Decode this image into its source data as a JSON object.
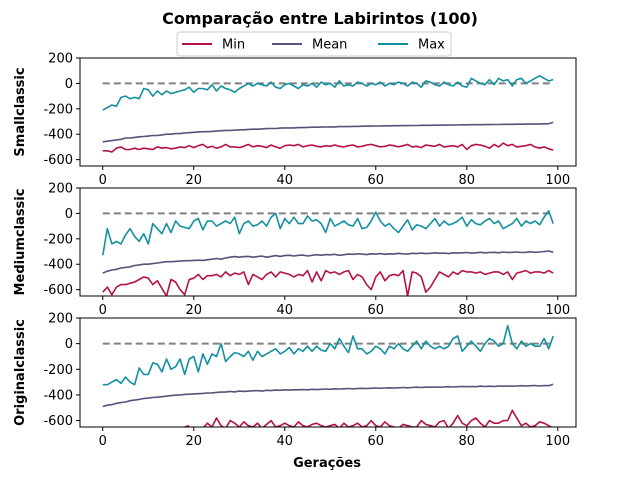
{
  "figure": {
    "title": "Comparação entre Labirintos (100)",
    "xlabel": "Gerações"
  },
  "legend": {
    "placement": "top-center",
    "entries": [
      {
        "name": "Min",
        "color": "#b5104a"
      },
      {
        "name": "Mean",
        "color": "#5c4f7a"
      },
      {
        "name": "Max",
        "color": "#1390a0"
      }
    ]
  },
  "colors": {
    "min": "#b5104a",
    "mean": "#5c4f7a",
    "max": "#1390a0",
    "baseline": "#808080"
  },
  "chart_data": [
    {
      "type": "line",
      "ylabel": "Smallclassic",
      "xlim": [
        -5,
        104
      ],
      "ylim": [
        -650,
        200
      ],
      "xticks": [
        "0",
        "20",
        "40",
        "60",
        "80",
        "100"
      ],
      "yticks": [
        "-600",
        "-400",
        "-200",
        "0",
        "200"
      ],
      "baseline": 0,
      "x_start": 0,
      "x_step": 1,
      "series": [
        {
          "name": "Min",
          "values": [
            -530,
            -530,
            -540,
            -510,
            -500,
            -520,
            -520,
            -510,
            -520,
            -510,
            -515,
            -520,
            -500,
            -510,
            -505,
            -515,
            -510,
            -500,
            -505,
            -490,
            -505,
            -490,
            -480,
            -505,
            -495,
            -510,
            -500,
            -480,
            -500,
            -500,
            -505,
            -495,
            -480,
            -500,
            -490,
            -495,
            -505,
            -485,
            -500,
            -510,
            -490,
            -485,
            -490,
            -480,
            -500,
            -490,
            -485,
            -495,
            -500,
            -490,
            -495,
            -485,
            -495,
            -500,
            -490,
            -485,
            -500,
            -495,
            -485,
            -480,
            -490,
            -500,
            -495,
            -485,
            -490,
            -500,
            -490,
            -480,
            -500,
            -495,
            -505,
            -485,
            -490,
            -495,
            -480,
            -500,
            -495,
            -490,
            -500,
            -480,
            -520,
            -490,
            -480,
            -485,
            -495,
            -510,
            -480,
            -500,
            -470,
            -490,
            -480,
            -500,
            -495,
            -490,
            -480,
            -500,
            -510,
            -500,
            -515,
            -525
          ]
        },
        {
          "name": "Mean",
          "values": [
            -460,
            -455,
            -450,
            -445,
            -440,
            -430,
            -430,
            -425,
            -420,
            -418,
            -415,
            -410,
            -410,
            -405,
            -400,
            -400,
            -395,
            -395,
            -390,
            -388,
            -385,
            -382,
            -380,
            -380,
            -378,
            -375,
            -372,
            -370,
            -370,
            -368,
            -365,
            -365,
            -362,
            -360,
            -360,
            -358,
            -356,
            -355,
            -355,
            -352,
            -350,
            -350,
            -350,
            -348,
            -348,
            -346,
            -345,
            -345,
            -344,
            -343,
            -342,
            -342,
            -340,
            -340,
            -340,
            -338,
            -338,
            -337,
            -336,
            -336,
            -335,
            -335,
            -334,
            -334,
            -333,
            -333,
            -332,
            -332,
            -331,
            -331,
            -330,
            -330,
            -330,
            -329,
            -329,
            -328,
            -328,
            -327,
            -327,
            -326,
            -326,
            -325,
            -325,
            -325,
            -324,
            -324,
            -323,
            -323,
            -322,
            -322,
            -322,
            -321,
            -321,
            -320,
            -320,
            -320,
            -319,
            -318,
            -318,
            -305
          ]
        },
        {
          "name": "Max",
          "values": [
            -210,
            -190,
            -170,
            -180,
            -110,
            -100,
            -120,
            -110,
            -120,
            -40,
            -50,
            -100,
            -60,
            -90,
            -60,
            -80,
            -70,
            -60,
            -50,
            -30,
            -70,
            -40,
            -40,
            -50,
            -10,
            -60,
            -20,
            -40,
            -50,
            -70,
            -40,
            -20,
            0,
            -20,
            0,
            -10,
            -20,
            10,
            -30,
            -40,
            -10,
            0,
            -20,
            -40,
            -10,
            -20,
            0,
            -30,
            10,
            -10,
            0,
            -30,
            20,
            -20,
            -10,
            -20,
            10,
            0,
            -20,
            0,
            -10,
            10,
            -20,
            0,
            -10,
            10,
            0,
            -20,
            10,
            0,
            -30,
            20,
            10,
            -10,
            -20,
            10,
            -10,
            -20,
            10,
            -20,
            -30,
            40,
            20,
            0,
            -10,
            30,
            -10,
            40,
            20,
            30,
            -20,
            30,
            40,
            0,
            20,
            40,
            60,
            40,
            20,
            30
          ]
        }
      ]
    },
    {
      "type": "line",
      "ylabel": "Mediumclassic",
      "xlim": [
        -5,
        104
      ],
      "ylim": [
        -650,
        200
      ],
      "xticks": [
        "0",
        "20",
        "40",
        "60",
        "80",
        "100"
      ],
      "yticks": [
        "-600",
        "-400",
        "-200",
        "0",
        "200"
      ],
      "baseline": 0,
      "x_start": 0,
      "x_step": 1,
      "series": [
        {
          "name": "Min",
          "values": [
            -620,
            -580,
            -640,
            -580,
            -560,
            -560,
            -550,
            -540,
            -520,
            -500,
            -510,
            -560,
            -530,
            -590,
            -650,
            -520,
            -540,
            -600,
            -640,
            -520,
            -510,
            -480,
            -520,
            -490,
            -490,
            -480,
            -500,
            -460,
            -490,
            -470,
            -480,
            -460,
            -560,
            -480,
            -500,
            -520,
            -480,
            -460,
            -500,
            -460,
            -470,
            -480,
            -500,
            -480,
            -490,
            -450,
            -540,
            -460,
            -530,
            -450,
            -470,
            -460,
            -480,
            -460,
            -450,
            -520,
            -480,
            -500,
            -560,
            -600,
            -500,
            -460,
            -530,
            -490,
            -480,
            -490,
            -450,
            -650,
            -460,
            -470,
            -500,
            -620,
            -580,
            -520,
            -460,
            -480,
            -500,
            -460,
            -480,
            -450,
            -460,
            -460,
            -470,
            -460,
            -480,
            -470,
            -460,
            -460,
            -480,
            -460,
            -520,
            -470,
            -460,
            -450,
            -470,
            -460,
            -460,
            -470,
            -450,
            -470
          ]
        },
        {
          "name": "Mean",
          "values": [
            -470,
            -455,
            -445,
            -440,
            -430,
            -425,
            -420,
            -410,
            -405,
            -400,
            -400,
            -395,
            -390,
            -385,
            -380,
            -380,
            -378,
            -375,
            -372,
            -372,
            -370,
            -368,
            -370,
            -365,
            -360,
            -355,
            -360,
            -350,
            -345,
            -340,
            -345,
            -340,
            -338,
            -345,
            -340,
            -336,
            -345,
            -338,
            -332,
            -338,
            -332,
            -330,
            -335,
            -330,
            -328,
            -335,
            -330,
            -325,
            -330,
            -324,
            -326,
            -322,
            -330,
            -325,
            -320,
            -322,
            -318,
            -320,
            -324,
            -318,
            -320,
            -316,
            -322,
            -318,
            -320,
            -314,
            -318,
            -320,
            -314,
            -316,
            -312,
            -316,
            -314,
            -310,
            -314,
            -312,
            -316,
            -310,
            -312,
            -310,
            -308,
            -312,
            -310,
            -306,
            -310,
            -308,
            -306,
            -310,
            -304,
            -308,
            -306,
            -304,
            -308,
            -306,
            -302,
            -306,
            -304,
            -300,
            -296,
            -306
          ]
        },
        {
          "name": "Max",
          "values": [
            -330,
            -120,
            -240,
            -220,
            -240,
            -170,
            -120,
            -180,
            -220,
            -160,
            -240,
            -80,
            -120,
            -160,
            -80,
            -150,
            -60,
            -100,
            -110,
            -120,
            -60,
            -40,
            -130,
            -60,
            -60,
            -100,
            -80,
            -60,
            -80,
            -30,
            -160,
            -80,
            -60,
            -100,
            -90,
            -60,
            -100,
            -30,
            0,
            -120,
            -40,
            -80,
            -30,
            -80,
            -80,
            -20,
            -60,
            -50,
            -80,
            -150,
            -40,
            -100,
            -80,
            -60,
            -90,
            -100,
            -40,
            -120,
            -110,
            -60,
            10,
            -60,
            -100,
            -80,
            -120,
            -150,
            -100,
            -50,
            -130,
            -90,
            -100,
            -120,
            -80,
            -40,
            -100,
            -60,
            -90,
            -80,
            -60,
            -30,
            -100,
            -50,
            -80,
            -90,
            -60,
            -40,
            -80,
            -60,
            -120,
            -100,
            -80,
            -40,
            -100,
            -60,
            -80,
            -60,
            -90,
            -30,
            20,
            -80
          ]
        }
      ]
    },
    {
      "type": "line",
      "ylabel": "Originalclassic",
      "xlim": [
        -5,
        104
      ],
      "ylim": [
        -650,
        200
      ],
      "xticks": [
        "0",
        "20",
        "40",
        "60",
        "80",
        "100"
      ],
      "yticks": [
        "-600",
        "-400",
        "-200",
        "0",
        "200"
      ],
      "baseline": 0,
      "x_start": 0,
      "x_step": 1,
      "series": [
        {
          "name": "Min",
          "values": [
            null,
            null,
            null,
            null,
            null,
            null,
            null,
            null,
            null,
            null,
            null,
            null,
            null,
            null,
            null,
            null,
            null,
            null,
            -650,
            -640,
            null,
            null,
            -660,
            -620,
            -650,
            -580,
            -640,
            -660,
            -600,
            -620,
            -650,
            -610,
            -640,
            -650,
            -620,
            -660,
            -630,
            -600,
            -650,
            -640,
            -620,
            -640,
            -650,
            -610,
            -640,
            -650,
            -630,
            -620,
            -640,
            -650,
            -640,
            -630,
            -660,
            -620,
            -650,
            -640,
            -620,
            -650,
            -640,
            -600,
            -640,
            -650,
            -610,
            -640,
            -650,
            -660,
            -630,
            -640,
            -650,
            -650,
            -600,
            -630,
            -640,
            -650,
            -610,
            -600,
            -660,
            -620,
            -560,
            -620,
            -640,
            -600,
            -580,
            -620,
            -650,
            -600,
            -620,
            -620,
            -600,
            -600,
            -520,
            -580,
            -640,
            -620,
            -650,
            -640,
            -610,
            -620,
            -640,
            -660
          ]
        },
        {
          "name": "Mean",
          "values": [
            -490,
            -480,
            -475,
            -465,
            -460,
            -455,
            -445,
            -440,
            -435,
            -428,
            -425,
            -420,
            -418,
            -414,
            -410,
            -405,
            -402,
            -400,
            -396,
            -394,
            -392,
            -390,
            -388,
            -385,
            -384,
            -380,
            -378,
            -378,
            -372,
            -376,
            -370,
            -372,
            -370,
            -368,
            -366,
            -370,
            -364,
            -366,
            -362,
            -364,
            -360,
            -362,
            -360,
            -360,
            -358,
            -360,
            -356,
            -358,
            -356,
            -354,
            -356,
            -352,
            -354,
            -352,
            -350,
            -352,
            -350,
            -348,
            -350,
            -348,
            -346,
            -348,
            -346,
            -344,
            -346,
            -344,
            -342,
            -344,
            -342,
            -340,
            -342,
            -340,
            -340,
            -338,
            -340,
            -338,
            -336,
            -338,
            -336,
            -334,
            -336,
            -334,
            -336,
            -332,
            -334,
            -332,
            -334,
            -330,
            -332,
            -330,
            -332,
            -330,
            -328,
            -330,
            -328,
            -326,
            -330,
            -326,
            -328,
            -316
          ]
        },
        {
          "name": "Max",
          "values": [
            -320,
            -320,
            -300,
            -280,
            -310,
            -260,
            -300,
            -320,
            -190,
            -240,
            -240,
            -150,
            -160,
            -220,
            -120,
            -200,
            -180,
            -120,
            -240,
            -120,
            -100,
            -220,
            -80,
            -160,
            -80,
            -100,
            0,
            -140,
            -100,
            -70,
            -80,
            -100,
            -60,
            -130,
            -60,
            -100,
            -80,
            -60,
            -40,
            -80,
            -60,
            -30,
            -80,
            -40,
            -60,
            -20,
            -60,
            -20,
            -50,
            -60,
            0,
            -40,
            40,
            -20,
            -70,
            60,
            -40,
            -40,
            -80,
            -60,
            -20,
            -40,
            -80,
            -20,
            -40,
            0,
            -40,
            -60,
            -20,
            20,
            -40,
            20,
            -20,
            -40,
            -20,
            -40,
            -20,
            40,
            60,
            -60,
            -20,
            20,
            -20,
            -60,
            0,
            40,
            20,
            -20,
            0,
            140,
            0,
            -40,
            20,
            -20,
            0,
            -20,
            -20,
            40,
            -40,
            60
          ]
        }
      ]
    }
  ]
}
